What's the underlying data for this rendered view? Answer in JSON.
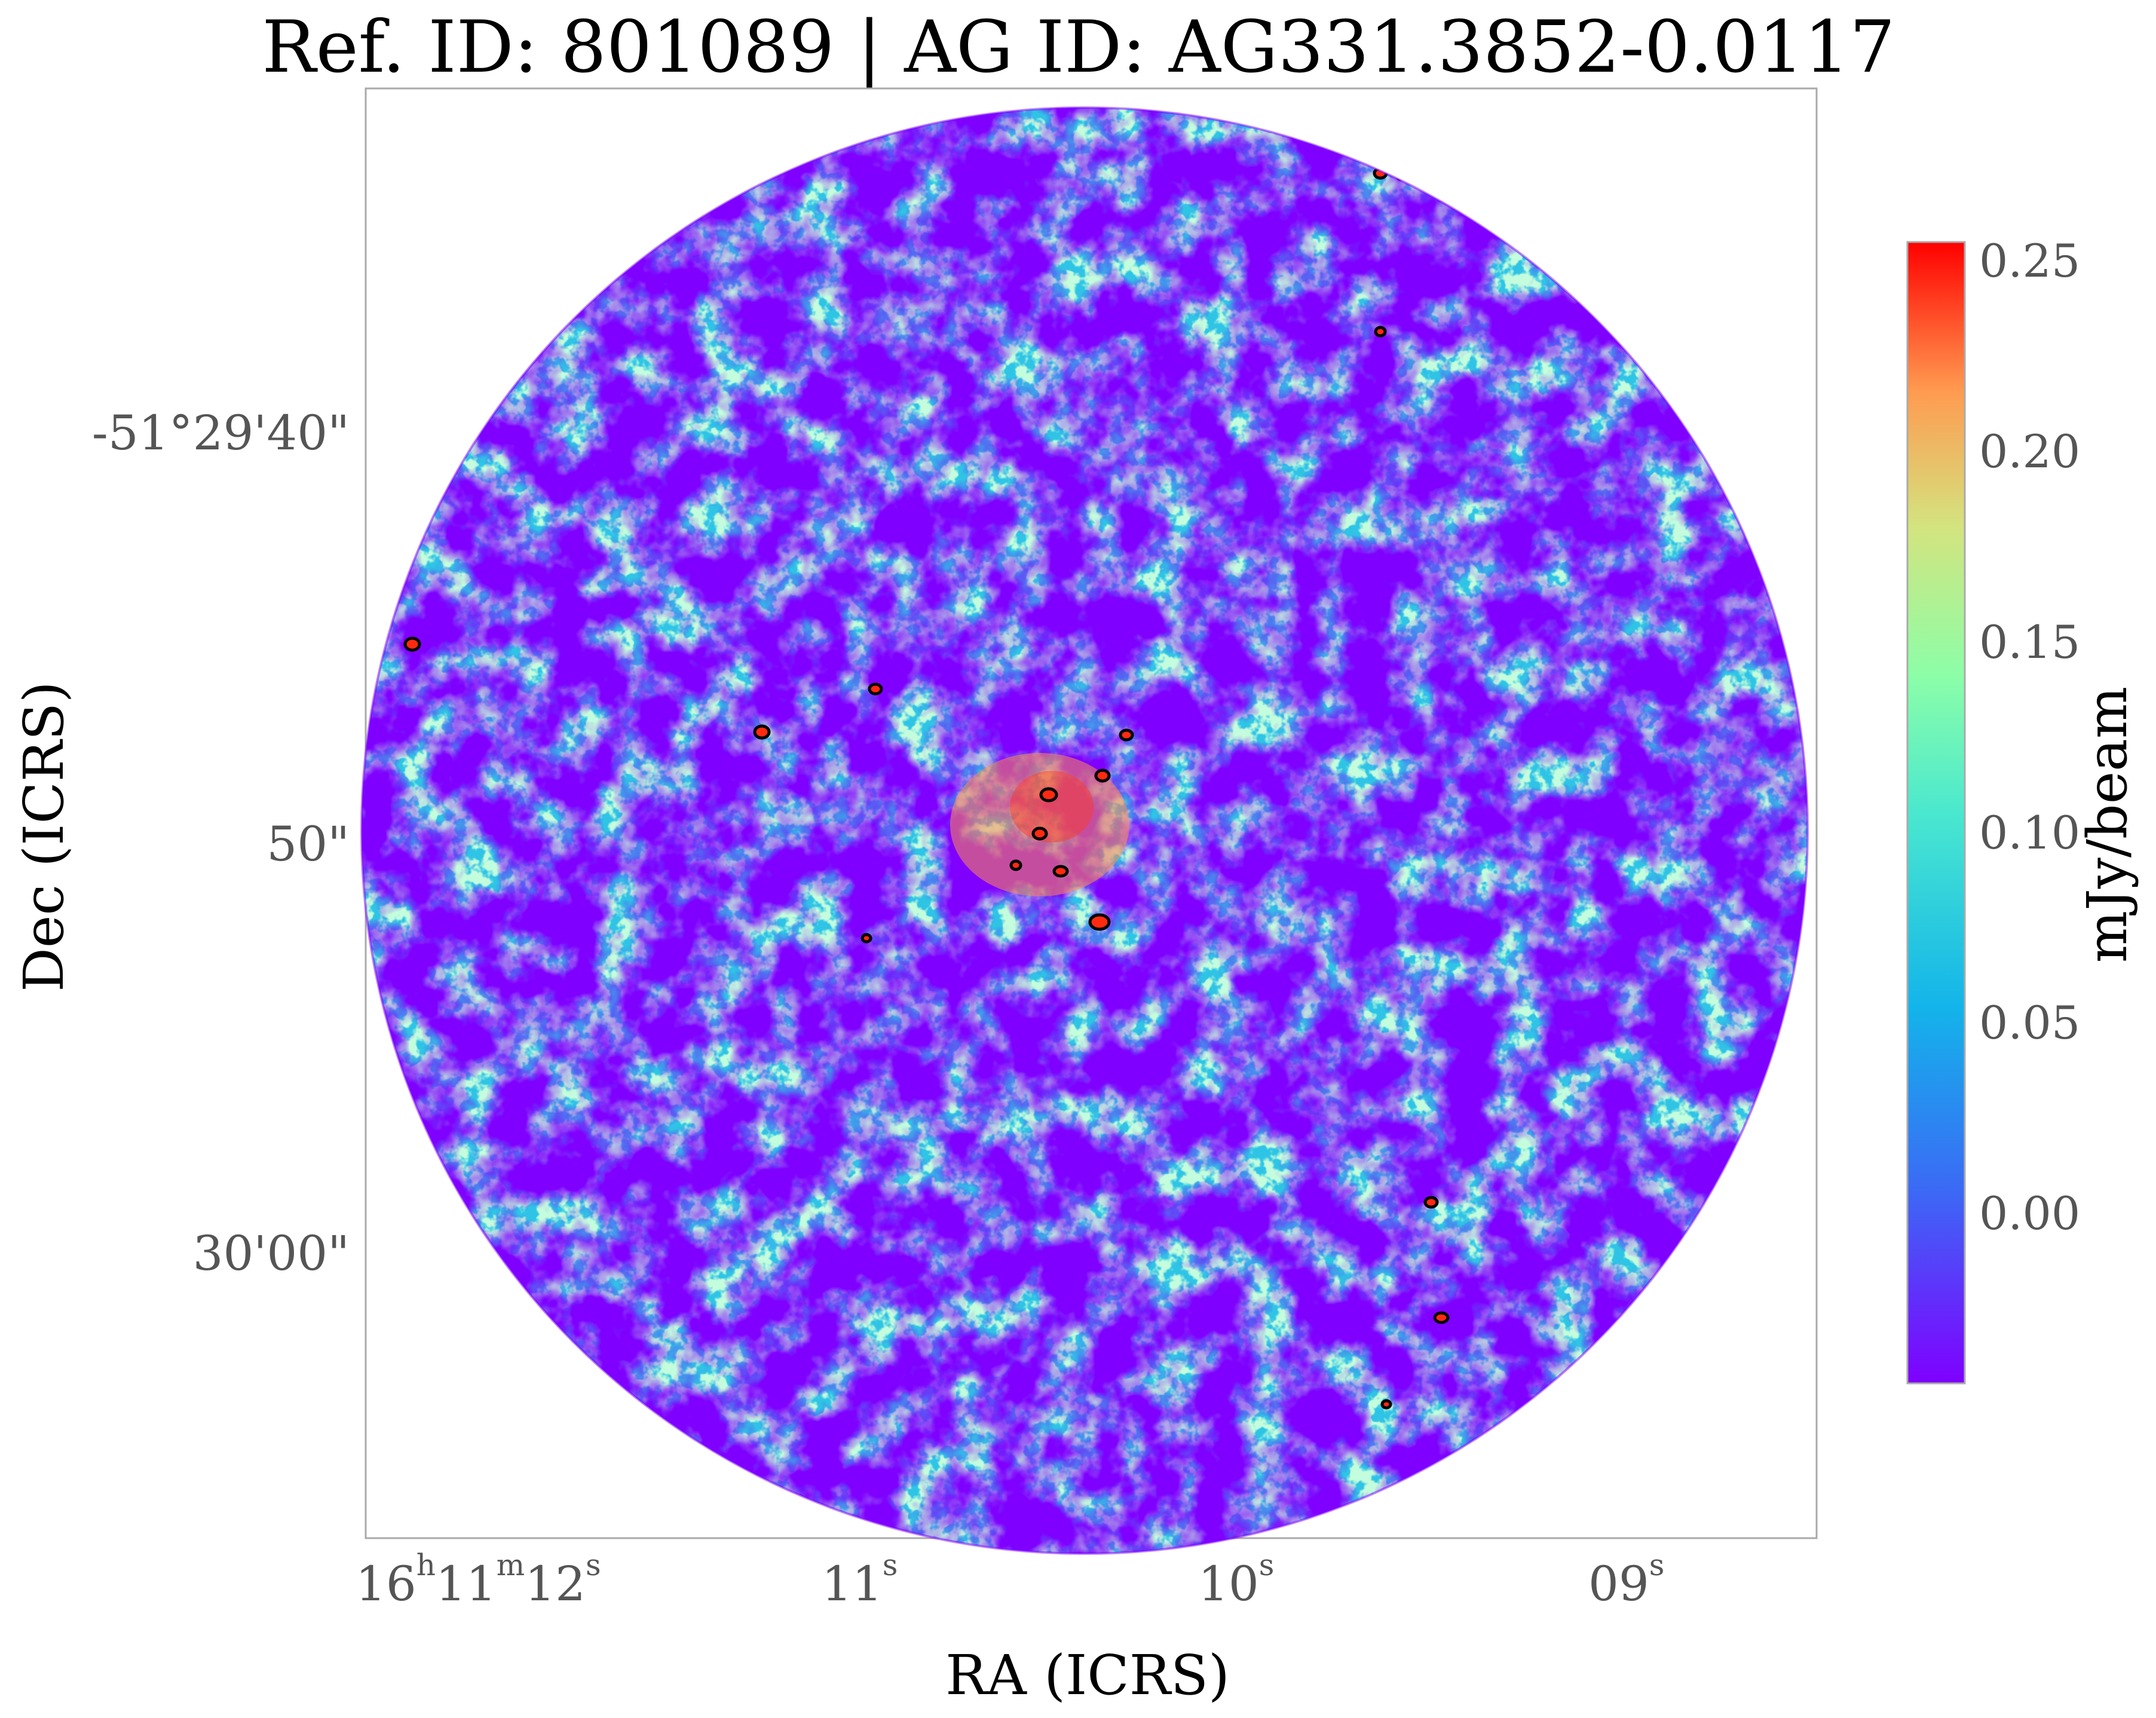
{
  "title": "Ref. ID: 801089 | AG ID: AG331.3852-0.0117",
  "xlabel": "RA (ICRS)",
  "ylabel": "Dec (ICRS)",
  "x_ticks": [
    {
      "h": "16",
      "m": "11",
      "s": "12",
      "hs": "h",
      "ms": "m",
      "ss": "s"
    },
    {
      "s": "11",
      "ss": "s"
    },
    {
      "s": "10",
      "ss": "s"
    },
    {
      "s": "09",
      "ss": "s"
    }
  ],
  "y_ticks": [
    "-51°29'40\"",
    "50\"",
    "30'00\""
  ],
  "colorbar": {
    "label": "mJy/beam",
    "ticks": [
      "0.25",
      "0.20",
      "0.15",
      "0.10",
      "0.05",
      "0.00"
    ],
    "colormap": "rainbow",
    "min_color": "#7f00ff",
    "max_color": "#ff0000"
  },
  "image": {
    "description_type": "radio continuum map, circular primary beam field",
    "frame_color": "#aaaaaa"
  }
}
